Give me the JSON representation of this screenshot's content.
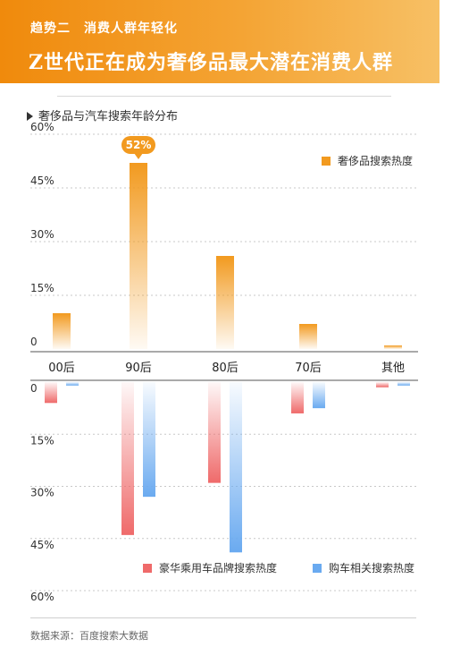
{
  "header": {
    "kicker": "趋势二　消费人群年轻化",
    "headline": "Z世代正在成为奢侈品最大潜在消费人群"
  },
  "chart_title": "奢侈品与汽车搜索年龄分布",
  "source": "数据来源：百度搜索大数据",
  "colors": {
    "luxury": "#f29a1f",
    "luxury_car_brand": "#ef6a6a",
    "car_search": "#6aaaf0",
    "banner": "#f08a0c"
  },
  "chart_data": {
    "type": "bar",
    "categories": [
      "00后",
      "90后",
      "80后",
      "70后",
      "其他"
    ],
    "top": {
      "ylim": [
        0,
        60
      ],
      "yticks": [
        "0",
        "15%",
        "30%",
        "45%",
        "60%"
      ],
      "series": [
        {
          "name": "奢侈品搜索热度",
          "values": [
            10,
            52,
            26,
            7,
            1
          ]
        }
      ],
      "annotation": {
        "category": "90后",
        "text": "52%"
      }
    },
    "bottom": {
      "ylim": [
        0,
        60
      ],
      "yticks": [
        "0",
        "15%",
        "30%",
        "45%",
        "60%"
      ],
      "series": [
        {
          "name": "豪华乘用车品牌搜索热度",
          "values": [
            6,
            44,
            29,
            9,
            1.5
          ]
        },
        {
          "name": "购车相关搜索热度",
          "values": [
            1,
            33,
            49,
            7.5,
            1
          ]
        }
      ]
    },
    "grid": true,
    "legend_placement": "top-right"
  }
}
